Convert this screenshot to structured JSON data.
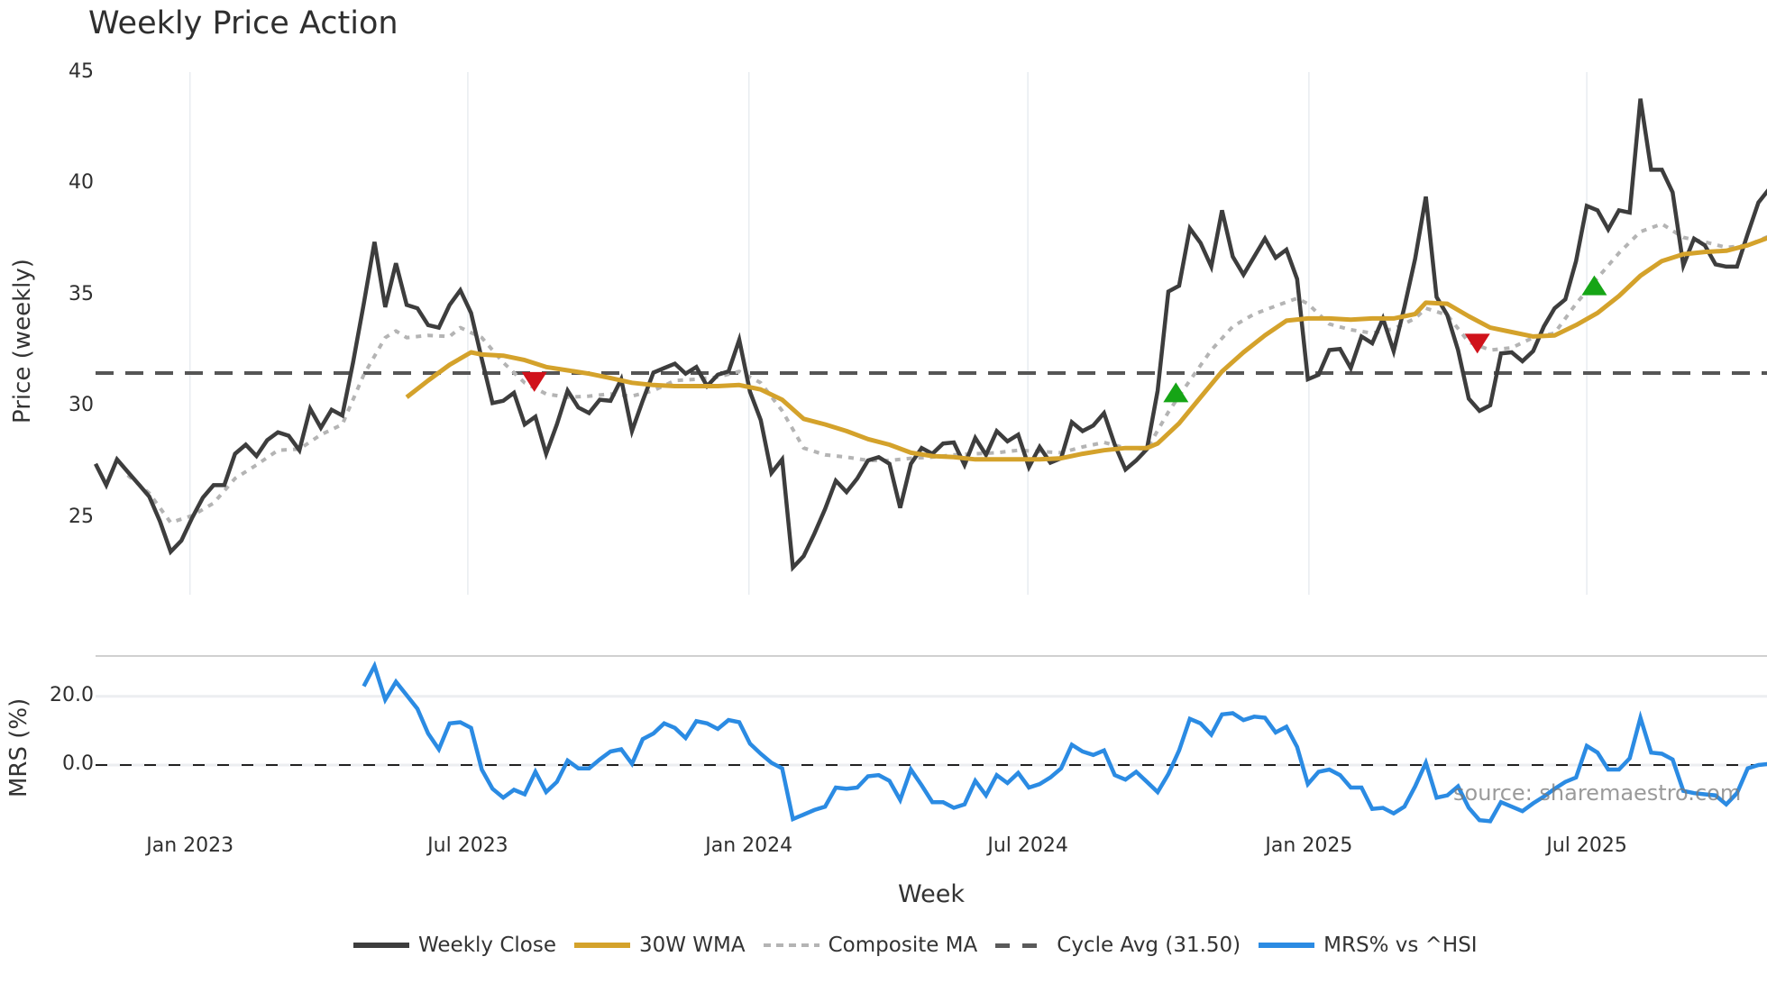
{
  "title": "Weekly Price Action",
  "watermark": "source: sharemaestro.com",
  "axes": {
    "price_ylabel": "Price (weekly)",
    "mrs_ylabel": "MRS (%)",
    "xlabel": "Week",
    "price_yticks": [
      {
        "value": 45,
        "label": "45"
      },
      {
        "value": 40,
        "label": "40"
      },
      {
        "value": 35,
        "label": "35"
      },
      {
        "value": 30,
        "label": "30"
      },
      {
        "value": 25,
        "label": "25"
      }
    ],
    "mrs_yticks": [
      {
        "value": 20,
        "label": "20.0"
      },
      {
        "value": 0,
        "label": "0.0"
      }
    ],
    "xticks": [
      {
        "week": 8.8,
        "label": "Jan 2023"
      },
      {
        "week": 34.7,
        "label": "Jul 2023"
      },
      {
        "week": 60.9,
        "label": "Jan 2024"
      },
      {
        "week": 86.9,
        "label": "Jul 2024"
      },
      {
        "week": 113.1,
        "label": "Jan 2025"
      },
      {
        "week": 139.0,
        "label": "Jul 2025"
      }
    ]
  },
  "legend": [
    {
      "key": "close",
      "label": "Weekly Close"
    },
    {
      "key": "wma",
      "label": "30W WMA"
    },
    {
      "key": "comp",
      "label": "Composite MA"
    },
    {
      "key": "cycle",
      "label": "Cycle Avg (31.50)"
    },
    {
      "key": "mrsl",
      "label": "MRS% vs ^HSI"
    }
  ],
  "colors": {
    "close": "#3d3d3d",
    "wma": "#d4a22b",
    "composite": "#b4b4b4",
    "cycle": "#555555",
    "mrs": "#2b8be3",
    "buy_marker": "#16a516",
    "sell_marker": "#d0121b",
    "grid": "#e8ecf0"
  },
  "chart_data": [
    {
      "type": "line",
      "title": "Weekly Price Action",
      "xlabel": "Week",
      "ylabel": "Price (weekly)",
      "ylim": [
        21.5,
        45
      ],
      "x_unit": "week index (0 = first week shown, approx. early Nov 2022)",
      "grid": true,
      "legend_position": "bottom",
      "cycle_avg": 31.5,
      "series": [
        {
          "name": "Weekly Close",
          "start_week": 0,
          "values": [
            27.42,
            26.46,
            27.62,
            27.06,
            26.51,
            25.95,
            24.84,
            23.47,
            23.97,
            24.99,
            25.9,
            26.46,
            26.46,
            27.87,
            28.28,
            27.77,
            28.48,
            28.84,
            28.68,
            28.03,
            29.9,
            29.04,
            29.85,
            29.59,
            31.97,
            34.61,
            37.39,
            34.46,
            36.43,
            34.56,
            34.41,
            33.65,
            33.54,
            34.56,
            35.22,
            34.2,
            32.13,
            30.15,
            30.25,
            30.61,
            29.19,
            29.54,
            27.87,
            29.19,
            30.71,
            29.95,
            29.7,
            30.3,
            30.25,
            31.22,
            28.89,
            30.25,
            31.52,
            31.72,
            31.92,
            31.47,
            31.77,
            30.91,
            31.42,
            31.57,
            32.99,
            30.66,
            29.39,
            27.01,
            27.62,
            22.76,
            23.27,
            24.28,
            25.39,
            26.66,
            26.15,
            26.76,
            27.57,
            27.72,
            27.42,
            25.44,
            27.42,
            28.13,
            27.87,
            28.33,
            28.38,
            27.37,
            28.58,
            27.82,
            28.89,
            28.43,
            28.73,
            27.27,
            28.18,
            27.47,
            27.67,
            29.29,
            28.89,
            29.14,
            29.7,
            28.28,
            27.16,
            27.57,
            28.08,
            30.71,
            35.16,
            35.42,
            38.0,
            37.34,
            36.28,
            38.81,
            36.73,
            35.92,
            36.73,
            37.54,
            36.68,
            37.04,
            35.72,
            31.22,
            31.42,
            32.53,
            32.58,
            31.72,
            33.14,
            32.84,
            33.95,
            32.48,
            34.46,
            36.63,
            39.42,
            34.91,
            34.1,
            32.53,
            30.35,
            29.8,
            30.05,
            32.38,
            32.43,
            32.03,
            32.48,
            33.59,
            34.41,
            34.81,
            36.53,
            39.01,
            38.81,
            37.95,
            38.81,
            38.71,
            43.82,
            40.63,
            40.63,
            39.62,
            36.33,
            37.54,
            37.24,
            36.38,
            36.28,
            36.28,
            37.75,
            39.16,
            39.77
          ]
        },
        {
          "name": "30W WMA",
          "points": [
            [
              29,
              30.41
            ],
            [
              31,
              31.16
            ],
            [
              33,
              31.87
            ],
            [
              35,
              32.43
            ],
            [
              36,
              32.33
            ],
            [
              38,
              32.28
            ],
            [
              40,
              32.08
            ],
            [
              42,
              31.77
            ],
            [
              44,
              31.62
            ],
            [
              46,
              31.47
            ],
            [
              48,
              31.27
            ],
            [
              50,
              31.06
            ],
            [
              52,
              30.96
            ],
            [
              54,
              30.91
            ],
            [
              56,
              30.91
            ],
            [
              58,
              30.91
            ],
            [
              60,
              30.96
            ],
            [
              62,
              30.76
            ],
            [
              64,
              30.3
            ],
            [
              66,
              29.44
            ],
            [
              68,
              29.19
            ],
            [
              70,
              28.89
            ],
            [
              72,
              28.53
            ],
            [
              74,
              28.28
            ],
            [
              76,
              27.92
            ],
            [
              78,
              27.77
            ],
            [
              80,
              27.72
            ],
            [
              82,
              27.62
            ],
            [
              84,
              27.62
            ],
            [
              86,
              27.62
            ],
            [
              88,
              27.62
            ],
            [
              90,
              27.67
            ],
            [
              92,
              27.87
            ],
            [
              94,
              28.03
            ],
            [
              96,
              28.13
            ],
            [
              98,
              28.13
            ],
            [
              99,
              28.33
            ],
            [
              101,
              29.24
            ],
            [
              103,
              30.41
            ],
            [
              105,
              31.57
            ],
            [
              107,
              32.43
            ],
            [
              109,
              33.19
            ],
            [
              111,
              33.85
            ],
            [
              113,
              33.95
            ],
            [
              115,
              33.95
            ],
            [
              117,
              33.9
            ],
            [
              119,
              33.95
            ],
            [
              121,
              33.95
            ],
            [
              123,
              34.15
            ],
            [
              124,
              34.66
            ],
            [
              126,
              34.61
            ],
            [
              128,
              34.05
            ],
            [
              130,
              33.54
            ],
            [
              132,
              33.34
            ],
            [
              134,
              33.14
            ],
            [
              136,
              33.19
            ],
            [
              138,
              33.65
            ],
            [
              140,
              34.2
            ],
            [
              142,
              34.96
            ],
            [
              144,
              35.87
            ],
            [
              146,
              36.53
            ],
            [
              148,
              36.84
            ],
            [
              150,
              36.94
            ],
            [
              152,
              36.99
            ],
            [
              154,
              37.24
            ],
            [
              156,
              37.59
            ]
          ]
        },
        {
          "name": "Composite MA",
          "points": [
            [
              3,
              26.91
            ],
            [
              5,
              26.1
            ],
            [
              7,
              24.78
            ],
            [
              9,
              25.09
            ],
            [
              11,
              25.65
            ],
            [
              13,
              26.76
            ],
            [
              15,
              27.37
            ],
            [
              17,
              28.03
            ],
            [
              19,
              28.08
            ],
            [
              21,
              28.73
            ],
            [
              23,
              29.19
            ],
            [
              25,
              31.42
            ],
            [
              27,
              33.09
            ],
            [
              28,
              33.39
            ],
            [
              29,
              33.09
            ],
            [
              31,
              33.19
            ],
            [
              33,
              33.14
            ],
            [
              34,
              33.54
            ],
            [
              36,
              33.09
            ],
            [
              38,
              31.97
            ],
            [
              40,
              31.06
            ],
            [
              42,
              30.56
            ],
            [
              44,
              30.41
            ],
            [
              46,
              30.46
            ],
            [
              48,
              30.56
            ],
            [
              50,
              30.46
            ],
            [
              52,
              30.71
            ],
            [
              54,
              31.16
            ],
            [
              56,
              31.22
            ],
            [
              58,
              31.32
            ],
            [
              60,
              31.57
            ],
            [
              62,
              31.06
            ],
            [
              64,
              29.8
            ],
            [
              66,
              28.13
            ],
            [
              68,
              27.82
            ],
            [
              70,
              27.72
            ],
            [
              72,
              27.57
            ],
            [
              74,
              27.57
            ],
            [
              76,
              27.67
            ],
            [
              78,
              27.72
            ],
            [
              80,
              27.82
            ],
            [
              82,
              27.87
            ],
            [
              84,
              27.92
            ],
            [
              86,
              28.03
            ],
            [
              88,
              27.97
            ],
            [
              90,
              27.92
            ],
            [
              92,
              28.18
            ],
            [
              94,
              28.38
            ],
            [
              96,
              28.13
            ],
            [
              98,
              28.08
            ],
            [
              100,
              29.75
            ],
            [
              102,
              31.16
            ],
            [
              104,
              32.53
            ],
            [
              106,
              33.59
            ],
            [
              108,
              34.15
            ],
            [
              110,
              34.51
            ],
            [
              112,
              34.86
            ],
            [
              113,
              34.61
            ],
            [
              115,
              33.7
            ],
            [
              117,
              33.44
            ],
            [
              119,
              33.29
            ],
            [
              121,
              33.49
            ],
            [
              123,
              33.95
            ],
            [
              124,
              34.41
            ],
            [
              126,
              34.1
            ],
            [
              128,
              32.89
            ],
            [
              130,
              32.53
            ],
            [
              132,
              32.63
            ],
            [
              134,
              33.09
            ],
            [
              136,
              33.29
            ],
            [
              138,
              34.61
            ],
            [
              140,
              35.77
            ],
            [
              142,
              36.89
            ],
            [
              144,
              37.85
            ],
            [
              146,
              38.2
            ],
            [
              148,
              37.59
            ],
            [
              150,
              37.39
            ],
            [
              152,
              37.14
            ],
            [
              154,
              37.24
            ],
            [
              156,
              37.65
            ]
          ]
        },
        {
          "name": "Cycle Avg (31.50)",
          "constant": 31.5
        }
      ],
      "markers": [
        {
          "type": "sell",
          "shape": "triangle-down",
          "week": 40.9,
          "value": 31.22
        },
        {
          "type": "buy",
          "shape": "triangle-up",
          "week": 100.7,
          "value": 30.51
        },
        {
          "type": "sell",
          "shape": "triangle-down",
          "week": 128.8,
          "value": 32.94
        },
        {
          "type": "buy",
          "shape": "triangle-up",
          "week": 139.7,
          "value": 35.32
        }
      ]
    },
    {
      "type": "line",
      "title": "",
      "xlabel": "Week",
      "ylabel": "MRS (%)",
      "ylim": [
        -22,
        32
      ],
      "grid": true,
      "reference_line": 0,
      "series": [
        {
          "name": "MRS% vs ^HSI",
          "start_week": 25,
          "values": [
            22.95,
            28.85,
            19.02,
            24.26,
            20.33,
            16.39,
            9.18,
            4.59,
            12.13,
            12.46,
            10.82,
            -1.31,
            -6.89,
            -9.51,
            -7.21,
            -8.52,
            -1.97,
            -7.87,
            -4.92,
            1.31,
            -0.98,
            -0.98,
            1.64,
            3.93,
            4.59,
            0.33,
            7.54,
            9.18,
            12.13,
            10.82,
            7.87,
            12.79,
            12.13,
            10.49,
            13.11,
            12.46,
            6.23,
            3.28,
            0.66,
            -0.98,
            -15.74,
            -14.43,
            -13.11,
            -12.13,
            -6.56,
            -6.89,
            -6.56,
            -3.28,
            -2.95,
            -4.59,
            -10.16,
            -1.31,
            -5.9,
            -10.82,
            -10.82,
            -12.46,
            -11.48,
            -4.59,
            -8.85,
            -2.95,
            -5.25,
            -2.3,
            -6.56,
            -5.57,
            -3.61,
            -0.98,
            5.9,
            3.93,
            2.95,
            4.26,
            -2.95,
            -4.26,
            -1.97,
            -4.92,
            -7.87,
            -2.62,
            4.26,
            13.44,
            12.13,
            8.85,
            14.75,
            15.08,
            13.11,
            14.1,
            13.77,
            9.51,
            11.15,
            5.25,
            -5.57,
            -1.97,
            -1.31,
            -2.95,
            -6.56,
            -6.56,
            -12.79,
            -12.46,
            -14.1,
            -12.13,
            -6.23,
            0.66,
            -9.51,
            -8.85,
            -6.23,
            -12.46,
            -16.07,
            -16.39,
            -10.82,
            -12.13,
            -13.44,
            -11.15,
            -9.18,
            -6.89,
            -4.92,
            -3.61,
            5.57,
            3.61,
            -1.31,
            -1.31,
            1.97,
            13.77,
            3.61,
            3.28,
            1.64,
            -7.54,
            -8.2,
            -8.52,
            -8.85,
            -11.48,
            -8.2,
            -0.98,
            0.0,
            0.33
          ]
        }
      ]
    }
  ]
}
